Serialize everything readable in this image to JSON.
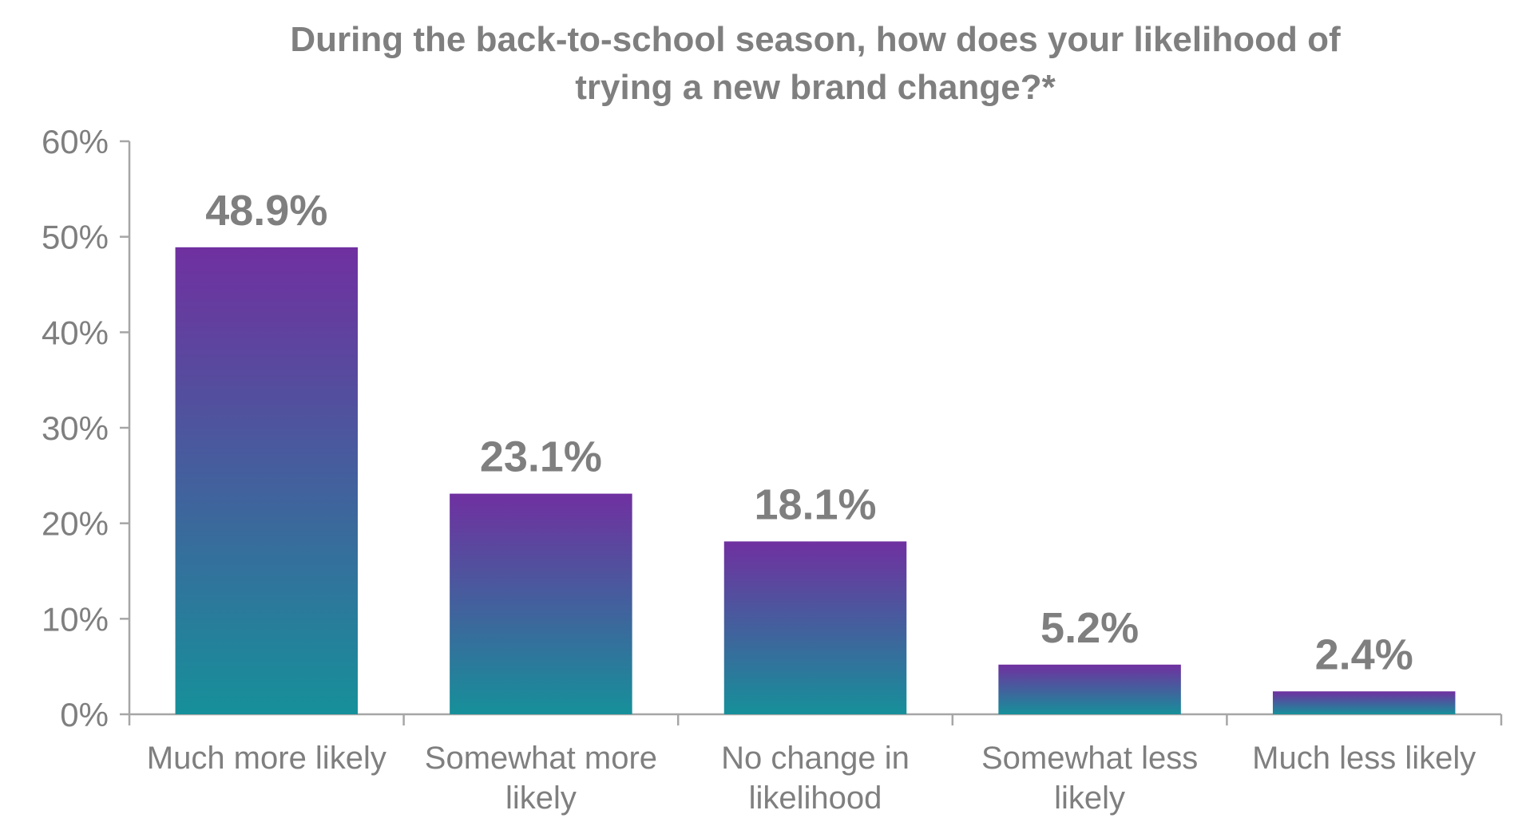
{
  "chart_data": {
    "type": "bar",
    "title": "During the back-to-school season, how does your likelihood of trying a new brand change?*",
    "title_lines": [
      "During the back-to-school season, how does your likelihood of",
      "trying a new brand change?*"
    ],
    "categories": [
      [
        "Much more likely"
      ],
      [
        "Somewhat more",
        "likely"
      ],
      [
        "No change in",
        "likelihood"
      ],
      [
        "Somewhat less",
        "likely"
      ],
      [
        "Much less likely"
      ]
    ],
    "values": [
      48.9,
      23.1,
      18.1,
      5.2,
      2.4
    ],
    "data_labels": [
      "48.9%",
      "23.1%",
      "18.1%",
      "5.2%",
      "2.4%"
    ],
    "yticks": [
      0,
      10,
      20,
      30,
      40,
      50,
      60
    ],
    "ytick_labels": [
      "0%",
      "10%",
      "20%",
      "30%",
      "40%",
      "50%",
      "60%"
    ],
    "ylim": [
      0,
      60
    ],
    "xlabel": "",
    "ylabel": "",
    "grid": false,
    "legend": "none",
    "colors": {
      "bar_top": "#7030a0",
      "bar_bottom": "#16909a",
      "text": "#7f7f7f",
      "axis": "#a6a6a6"
    }
  }
}
